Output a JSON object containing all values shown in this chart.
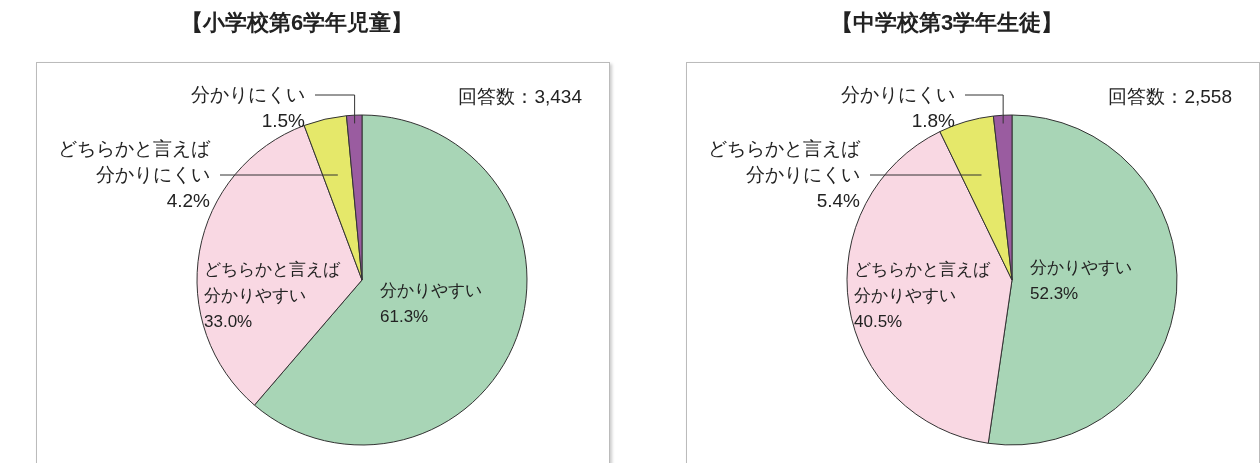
{
  "chart_data": [
    {
      "type": "pie",
      "title": "【小学校第6学年児童】",
      "categories": [
        "分かりやすい",
        "どちらかと言えば分かりやすい",
        "どちらかと言えば分かりにくい",
        "分かりにくい"
      ],
      "values": [
        61.3,
        33.0,
        4.2,
        1.5
      ],
      "colors": [
        "#a8d5b6",
        "#f9d8e3",
        "#e5e86a",
        "#9a5ca0"
      ],
      "value_labels": [
        "61.3%",
        "33.0%",
        "4.2%",
        "1.5%"
      ],
      "annotations": [
        "回答数：3,434"
      ]
    },
    {
      "type": "pie",
      "title": "【中学校第3学年生徒】",
      "categories": [
        "分かりやすい",
        "どちらかと言えば分かりやすい",
        "どちらかと言えば分かりにくい",
        "分かりにくい"
      ],
      "values": [
        52.3,
        40.5,
        5.4,
        1.8
      ],
      "colors": [
        "#a8d5b6",
        "#f9d8e3",
        "#e5e86a",
        "#9a5ca0"
      ],
      "value_labels": [
        "52.3%",
        "40.5%",
        "5.4%",
        "1.8%"
      ],
      "annotations": [
        "回答数：2,558"
      ]
    }
  ]
}
